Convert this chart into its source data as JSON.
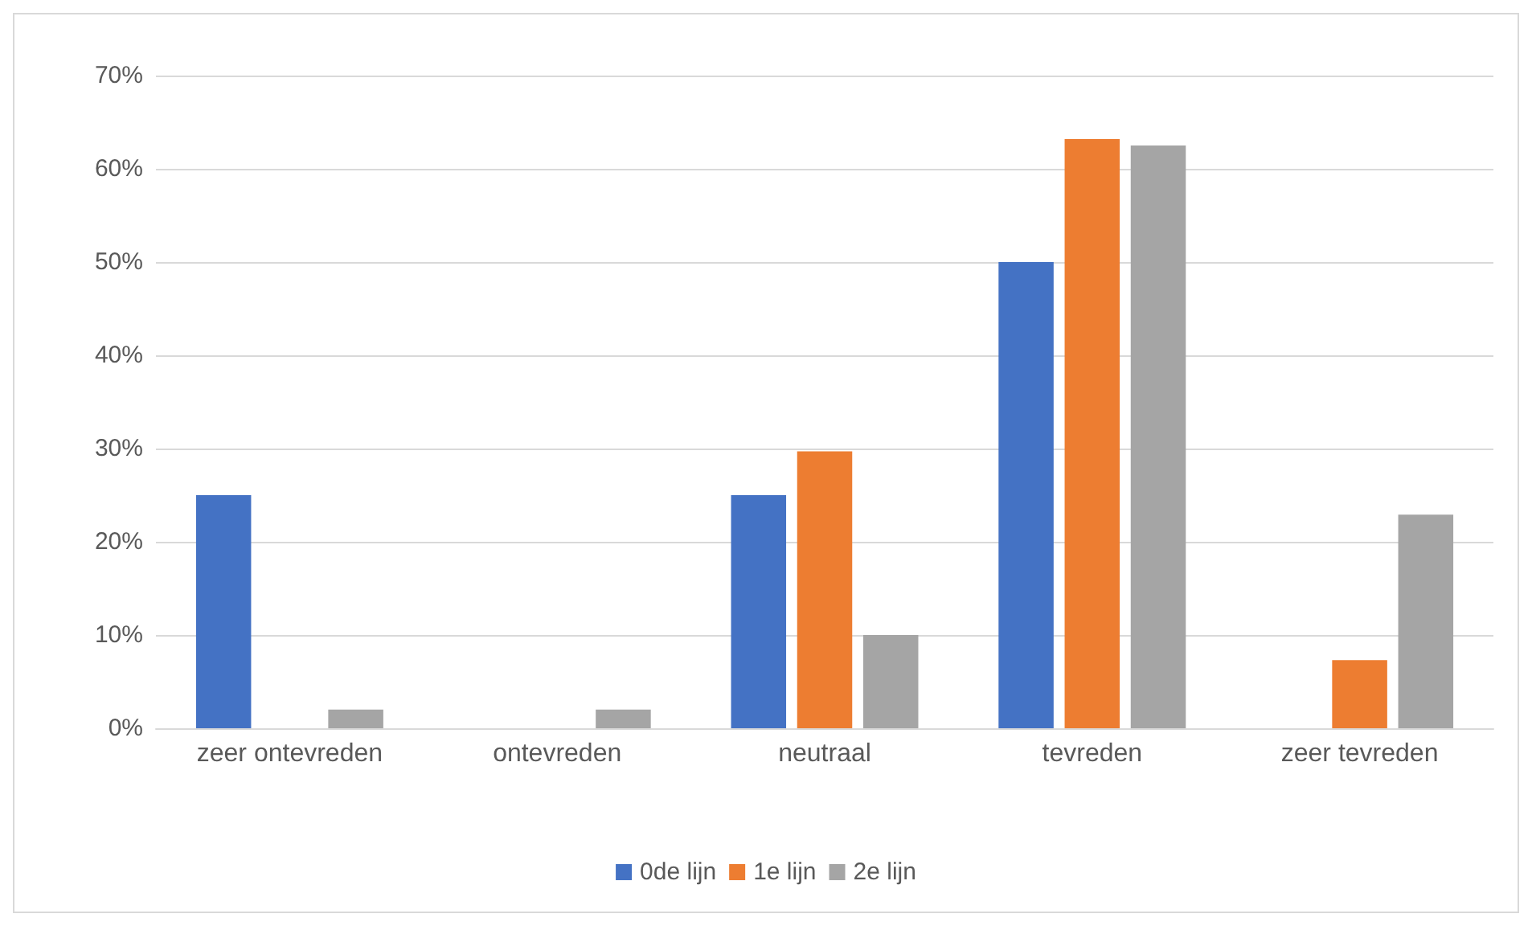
{
  "chart_data": {
    "type": "bar",
    "categories": [
      "zeer ontevreden",
      "ontevreden",
      "neutraal",
      "tevreden",
      "zeer tevreden"
    ],
    "series": [
      {
        "name": "0de lijn",
        "color": "#4472c4",
        "values": [
          25,
          0,
          25,
          50,
          0
        ]
      },
      {
        "name": "1e lijn",
        "color": "#ed7d31",
        "values": [
          0,
          0,
          29.7,
          63.2,
          7.3
        ]
      },
      {
        "name": "2e lijn",
        "color": "#a5a5a5",
        "values": [
          2,
          2,
          10,
          62.5,
          22.9
        ]
      }
    ],
    "ylim": [
      0,
      70
    ],
    "yticks": [
      {
        "value": 0,
        "label": "0%"
      },
      {
        "value": 10,
        "label": "10%"
      },
      {
        "value": 20,
        "label": "20%"
      },
      {
        "value": 30,
        "label": "30%"
      },
      {
        "value": 40,
        "label": "40%"
      },
      {
        "value": 50,
        "label": "50%"
      },
      {
        "value": 60,
        "label": "60%"
      },
      {
        "value": 70,
        "label": "70%"
      }
    ],
    "grid": "y",
    "legend": "bottom"
  }
}
